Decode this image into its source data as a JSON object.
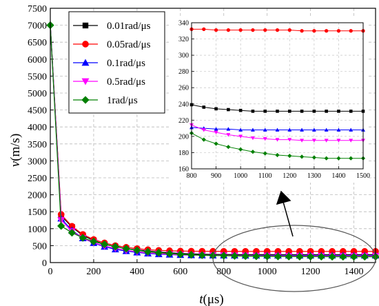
{
  "chart_data": {
    "type": "line",
    "xlabel": {
      "var": "t",
      "unit": "(μs)"
    },
    "ylabel": {
      "var": "v",
      "unit": "(m/s)"
    },
    "xlim": [
      0,
      1500
    ],
    "ylim": [
      0,
      7500
    ],
    "xticks": [
      0,
      200,
      400,
      600,
      800,
      1000,
      1200,
      1400
    ],
    "yticks": [
      0,
      500,
      1000,
      1500,
      2000,
      2500,
      3000,
      3500,
      4000,
      4500,
      5000,
      5500,
      6000,
      6500,
      7000,
      7500
    ],
    "grid": true,
    "legend_position": "top-left",
    "x": [
      0,
      50,
      100,
      150,
      200,
      250,
      300,
      350,
      400,
      450,
      500,
      550,
      600,
      650,
      700,
      750,
      800,
      850,
      900,
      950,
      1000,
      1050,
      1100,
      1150,
      1200,
      1250,
      1300,
      1350,
      1400,
      1450,
      1500
    ],
    "series": [
      {
        "name": "0.01rad/μs",
        "color": "#000000",
        "marker": "square",
        "values": [
          7000,
          1380,
          1050,
          800,
          650,
          540,
          470,
          410,
          370,
          340,
          310,
          290,
          270,
          255,
          245,
          240,
          239,
          236,
          234,
          233,
          232,
          231,
          231,
          231,
          231,
          231,
          231,
          231,
          231,
          231,
          231
        ]
      },
      {
        "name": "0.05rad/μs",
        "color": "#ff0000",
        "marker": "circle",
        "values": [
          7000,
          1420,
          1070,
          830,
          680,
          580,
          500,
          450,
          410,
          380,
          360,
          348,
          340,
          336,
          334,
          333,
          332,
          332,
          331,
          331,
          331,
          331,
          331,
          331,
          331,
          330,
          330,
          330,
          330,
          330,
          330
        ]
      },
      {
        "name": "0.1rad/μs",
        "color": "#0000ff",
        "marker": "triangle-up",
        "values": [
          7000,
          1300,
          950,
          720,
          580,
          470,
          390,
          340,
          300,
          270,
          250,
          235,
          225,
          218,
          214,
          212,
          211,
          210,
          209,
          209,
          208,
          208,
          208,
          208,
          208,
          208,
          208,
          208,
          208,
          208,
          208
        ]
      },
      {
        "name": "0.5rad/μs",
        "color": "#ff00ff",
        "marker": "triangle-down",
        "values": [
          7000,
          1250,
          920,
          720,
          590,
          490,
          420,
          360,
          320,
          290,
          265,
          245,
          232,
          222,
          216,
          213,
          214,
          208,
          205,
          202,
          200,
          198,
          197,
          196,
          196,
          195,
          195,
          195,
          195,
          195,
          195
        ]
      },
      {
        "name": "1rad/μs",
        "color": "#008000",
        "marker": "diamond",
        "values": [
          7000,
          1080,
          880,
          730,
          620,
          540,
          470,
          410,
          360,
          320,
          290,
          265,
          245,
          230,
          218,
          208,
          204,
          196,
          191,
          187,
          184,
          181,
          179,
          177,
          176,
          175,
          174,
          173,
          173,
          173,
          173
        ]
      }
    ],
    "inset": {
      "xlim": [
        800,
        1500
      ],
      "ylim": [
        160,
        340
      ],
      "xticks": [
        800,
        900,
        1000,
        1100,
        1200,
        1300,
        1400,
        1500
      ],
      "yticks": [
        160,
        180,
        200,
        220,
        240,
        260,
        280,
        300,
        320,
        340
      ],
      "grid": true
    }
  }
}
